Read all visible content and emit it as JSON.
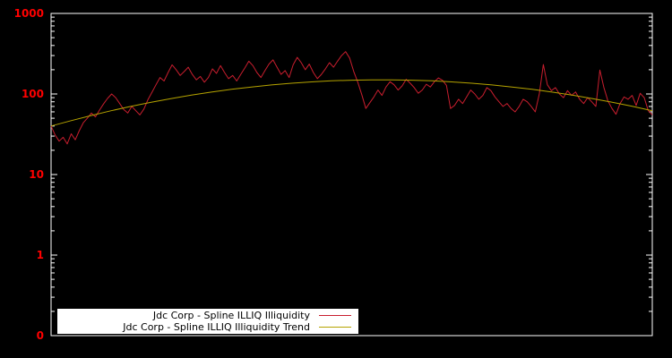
{
  "chart_data": {
    "type": "line",
    "title": "",
    "xlabel": "",
    "ylabel": "",
    "y_scale": "log",
    "ylim": [
      0.1,
      1000
    ],
    "grid": false,
    "background_color": "#000000",
    "axis_color": "#ffffff",
    "tick_label_color": "#ff0000",
    "yticks": [
      {
        "label": "1000",
        "value": 1000
      },
      {
        "label": "100",
        "value": 100
      },
      {
        "label": "10",
        "value": 10
      },
      {
        "label": "1",
        "value": 1
      },
      {
        "label": "0",
        "value": 0.1
      }
    ],
    "legend": {
      "position": "bottom-left",
      "background": "#ffffff",
      "text_color": "#000000"
    },
    "series": [
      {
        "name": "Jdc Corp - Spline ILLIQ Illiquidity",
        "color": "#c81e2e",
        "values": [
          40,
          31,
          26,
          29,
          24,
          32,
          27,
          35,
          44,
          50,
          58,
          52,
          63,
          75,
          88,
          100,
          90,
          76,
          64,
          58,
          70,
          62,
          55,
          65,
          85,
          105,
          130,
          160,
          145,
          185,
          230,
          200,
          170,
          190,
          215,
          175,
          150,
          165,
          140,
          160,
          205,
          180,
          225,
          185,
          155,
          170,
          145,
          175,
          210,
          255,
          225,
          185,
          160,
          195,
          235,
          265,
          215,
          175,
          195,
          160,
          230,
          285,
          245,
          200,
          235,
          185,
          155,
          175,
          205,
          245,
          215,
          255,
          300,
          335,
          280,
          190,
          140,
          98,
          66,
          78,
          92,
          112,
          96,
          122,
          142,
          130,
          112,
          126,
          152,
          136,
          120,
          102,
          112,
          132,
          122,
          142,
          158,
          148,
          128,
          66,
          72,
          86,
          76,
          92,
          112,
          100,
          86,
          96,
          120,
          110,
          92,
          80,
          70,
          76,
          66,
          60,
          70,
          86,
          80,
          70,
          60,
          100,
          232,
          130,
          110,
          120,
          100,
          90,
          110,
          96,
          106,
          86,
          76,
          90,
          80,
          70,
          198,
          120,
          82,
          66,
          56,
          76,
          92,
          86,
          96,
          72,
          102,
          90,
          62,
          55
        ]
      },
      {
        "name": "Jdc Corp - Spline ILLIQ Illiquidity Trend",
        "color": "#b5a300",
        "values": [
          40.0,
          46.7,
          54.0,
          61.9,
          70.2,
          78.9,
          87.8,
          96.8,
          105.6,
          114.1,
          122.2,
          129.5,
          135.9,
          141.3,
          145.5,
          148.3,
          149.8,
          149.8,
          148.3,
          145.5,
          141.3,
          135.9,
          129.5,
          122.2,
          114.1,
          105.6,
          96.8,
          87.8,
          78.9,
          70.2,
          61.9
        ]
      }
    ]
  }
}
